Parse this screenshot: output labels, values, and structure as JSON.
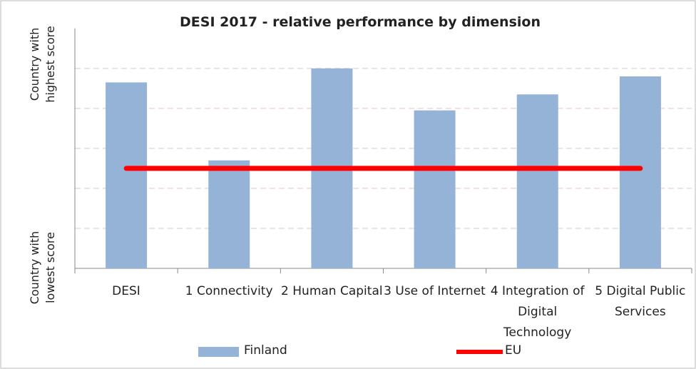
{
  "chart_data": {
    "type": "bar",
    "title": "DESI 2017 - relative performance by dimension",
    "y_top_label": [
      "Country with",
      "highest score"
    ],
    "y_bottom_label": [
      "Country with",
      "lowest score"
    ],
    "categories": [
      "DESI",
      "1 Connectivity",
      "2 Human Capital",
      "3 Use of Internet",
      "4 Integration of Digital Technology",
      "5 Digital Public Services"
    ],
    "series": [
      {
        "name": "Finland",
        "type": "bar",
        "color": "#95b3d7",
        "values": [
          0.93,
          0.54,
          1.0,
          0.79,
          0.87,
          0.96
        ]
      },
      {
        "name": "EU",
        "type": "line",
        "color": "#ff0000",
        "values": [
          0.5,
          0.5,
          0.5,
          0.5,
          0.5,
          0.5
        ]
      }
    ],
    "ylim": [
      0,
      1.2
    ],
    "yticks": [
      0,
      0.2,
      0.4,
      0.6,
      0.8,
      1.0
    ],
    "grid": true,
    "grid_color": "#e2c4c4",
    "legend": "bottom"
  }
}
